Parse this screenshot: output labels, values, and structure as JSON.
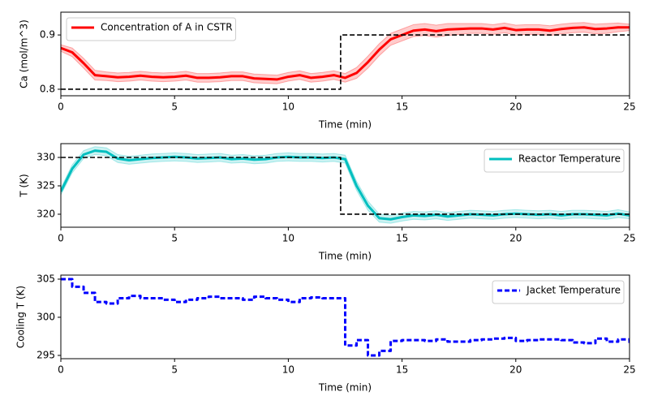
{
  "chart_data": [
    {
      "type": "line",
      "xlabel": "Time (min)",
      "ylabel": "Ca (mol/m^3)",
      "legend": "upper left",
      "xlim": [
        0,
        25
      ],
      "xticks": [
        0,
        5,
        10,
        15,
        20,
        25
      ],
      "ylim": [
        0.788,
        0.942
      ],
      "yticks": [
        0.8,
        0.9
      ],
      "x": [
        0,
        0.5,
        1,
        1.5,
        2,
        2.5,
        3,
        3.5,
        4,
        4.5,
        5,
        5.5,
        6,
        6.5,
        7,
        7.5,
        8,
        8.5,
        9,
        9.5,
        10,
        10.5,
        11,
        11.5,
        12,
        12.5,
        13,
        13.5,
        14,
        14.5,
        15,
        15.5,
        16,
        16.5,
        17,
        17.5,
        18,
        18.5,
        19,
        19.5,
        20,
        20.5,
        21,
        21.5,
        22,
        22.5,
        23,
        23.5,
        24,
        24.5,
        25
      ],
      "series": [
        {
          "name": "Concentration of A in CSTR",
          "color": "#ff0000",
          "linestyle": "solid",
          "linewidth": 3,
          "values": [
            0.876,
            0.868,
            0.848,
            0.826,
            0.824,
            0.822,
            0.823,
            0.825,
            0.823,
            0.822,
            0.823,
            0.825,
            0.821,
            0.821,
            0.822,
            0.824,
            0.824,
            0.82,
            0.819,
            0.818,
            0.823,
            0.826,
            0.821,
            0.823,
            0.826,
            0.821,
            0.83,
            0.85,
            0.873,
            0.892,
            0.9,
            0.908,
            0.91,
            0.907,
            0.91,
            0.911,
            0.912,
            0.912,
            0.91,
            0.913,
            0.909,
            0.91,
            0.91,
            0.908,
            0.911,
            0.913,
            0.914,
            0.911,
            0.912,
            0.914,
            0.914
          ],
          "band_upper": [
            0.882,
            0.876,
            0.857,
            0.835,
            0.832,
            0.83,
            0.831,
            0.833,
            0.831,
            0.83,
            0.831,
            0.833,
            0.829,
            0.829,
            0.83,
            0.832,
            0.832,
            0.828,
            0.827,
            0.826,
            0.831,
            0.834,
            0.829,
            0.831,
            0.834,
            0.829,
            0.84,
            0.861,
            0.884,
            0.903,
            0.911,
            0.919,
            0.921,
            0.918,
            0.921,
            0.921,
            0.921,
            0.921,
            0.919,
            0.922,
            0.918,
            0.919,
            0.919,
            0.917,
            0.92,
            0.922,
            0.923,
            0.92,
            0.921,
            0.922,
            0.92
          ],
          "band_lower": [
            0.87,
            0.86,
            0.839,
            0.817,
            0.816,
            0.814,
            0.815,
            0.817,
            0.815,
            0.814,
            0.815,
            0.817,
            0.813,
            0.813,
            0.814,
            0.816,
            0.816,
            0.812,
            0.811,
            0.81,
            0.815,
            0.818,
            0.813,
            0.815,
            0.818,
            0.813,
            0.82,
            0.839,
            0.862,
            0.881,
            0.889,
            0.897,
            0.899,
            0.896,
            0.899,
            0.901,
            0.903,
            0.903,
            0.901,
            0.904,
            0.9,
            0.901,
            0.901,
            0.899,
            0.902,
            0.904,
            0.905,
            0.902,
            0.903,
            0.906,
            0.908
          ]
        },
        {
          "color": "#000000",
          "linestyle": "dashed",
          "linewidth": 1.6,
          "x": [
            0,
            12.3,
            12.3,
            25
          ],
          "values": [
            0.8,
            0.8,
            0.9,
            0.9
          ]
        }
      ]
    },
    {
      "type": "line",
      "xlabel": "Time (min)",
      "ylabel": "T (K)",
      "legend": "upper right",
      "xlim": [
        0,
        25
      ],
      "xticks": [
        0,
        5,
        10,
        15,
        20,
        25
      ],
      "ylim": [
        317.71,
        332.43
      ],
      "yticks": [
        320,
        325,
        330
      ],
      "x": [
        0,
        0.5,
        1,
        1.5,
        2,
        2.5,
        3,
        3.5,
        4,
        4.5,
        5,
        5.5,
        6,
        6.5,
        7,
        7.5,
        8,
        8.5,
        9,
        9.5,
        10,
        10.5,
        11,
        11.5,
        12,
        12.5,
        13,
        13.5,
        14,
        14.5,
        15,
        15.5,
        16,
        16.5,
        17,
        17.5,
        18,
        18.5,
        19,
        19.5,
        20,
        20.5,
        21,
        21.5,
        22,
        22.5,
        23,
        23.5,
        24,
        24.5,
        25
      ],
      "series": [
        {
          "name": "Reactor Temperature",
          "color": "#00bfbf",
          "linestyle": "solid",
          "linewidth": 3,
          "values": [
            324.0,
            328.0,
            330.5,
            331.2,
            331.0,
            329.8,
            329.5,
            329.7,
            329.9,
            330.0,
            330.1,
            330.0,
            329.8,
            329.9,
            330.0,
            329.7,
            329.8,
            329.6,
            329.7,
            330.0,
            330.1,
            330.0,
            330.0,
            329.9,
            330.0,
            329.7,
            325.0,
            321.5,
            319.3,
            319.1,
            319.5,
            319.8,
            319.7,
            319.9,
            319.6,
            319.8,
            320.0,
            319.9,
            319.8,
            320.0,
            320.1,
            320.0,
            319.9,
            320.0,
            319.8,
            320.0,
            320.0,
            319.9,
            319.8,
            320.1,
            319.8
          ],
          "band_upper": [
            324.6,
            328.7,
            331.2,
            331.9,
            331.7,
            330.5,
            330.2,
            330.4,
            330.6,
            330.7,
            330.8,
            330.7,
            330.5,
            330.6,
            330.7,
            330.4,
            330.5,
            330.3,
            330.4,
            330.7,
            330.8,
            330.7,
            330.7,
            330.6,
            330.7,
            330.4,
            325.8,
            322.3,
            320.0,
            319.8,
            320.2,
            320.5,
            320.4,
            320.6,
            320.3,
            320.5,
            320.7,
            320.6,
            320.5,
            320.7,
            320.8,
            320.7,
            320.6,
            320.7,
            320.5,
            320.7,
            320.7,
            320.6,
            320.5,
            320.8,
            320.4
          ],
          "band_lower": [
            323.4,
            327.3,
            329.8,
            330.5,
            330.3,
            329.1,
            328.8,
            329.0,
            329.2,
            329.3,
            329.4,
            329.3,
            329.1,
            329.2,
            329.3,
            329.0,
            329.1,
            328.9,
            329.0,
            329.3,
            329.4,
            329.3,
            329.3,
            329.2,
            329.3,
            329.0,
            324.2,
            320.7,
            318.6,
            318.4,
            318.8,
            319.1,
            319.0,
            319.2,
            318.9,
            319.1,
            319.3,
            319.2,
            319.1,
            319.3,
            319.4,
            319.3,
            319.2,
            319.3,
            319.1,
            319.3,
            319.3,
            319.2,
            319.1,
            319.4,
            319.2
          ]
        },
        {
          "color": "#000000",
          "linestyle": "dashed",
          "linewidth": 1.6,
          "x": [
            0,
            12.3,
            12.3,
            25
          ],
          "values": [
            330,
            330,
            320,
            320
          ]
        }
      ]
    },
    {
      "type": "line",
      "xlabel": "Time (min)",
      "ylabel": "Cooling T (K)",
      "legend": "upper right",
      "xlim": [
        0,
        25
      ],
      "xticks": [
        0,
        5,
        10,
        15,
        20,
        25
      ],
      "ylim": [
        294.57,
        305.53
      ],
      "yticks": [
        295,
        300,
        305
      ],
      "x": [
        0,
        0.5,
        1,
        1.5,
        2,
        2.5,
        3,
        3.5,
        4,
        4.5,
        5,
        5.5,
        6,
        6.5,
        7,
        7.5,
        8,
        8.5,
        9,
        9.5,
        10,
        10.5,
        11,
        11.5,
        12,
        12.5,
        13,
        13.5,
        14,
        14.5,
        15,
        15.5,
        16,
        16.5,
        17,
        17.5,
        18,
        18.5,
        19,
        19.5,
        20,
        20.5,
        21,
        21.5,
        22,
        22.5,
        23,
        23.5,
        24,
        24.5,
        25
      ],
      "series": [
        {
          "name": "Jacket Temperature",
          "color": "#0000ff",
          "linestyle": "dashed",
          "linewidth": 3,
          "drawstyle": "steps-post",
          "values": [
            305,
            304,
            303.2,
            302,
            301.8,
            302.5,
            302.8,
            302.5,
            302.5,
            302.3,
            302.0,
            302.3,
            302.5,
            302.7,
            302.5,
            302.5,
            302.3,
            302.7,
            302.5,
            302.3,
            302.0,
            302.5,
            302.6,
            302.5,
            302.5,
            296.3,
            297.0,
            295.0,
            295.6,
            296.9,
            297.0,
            297.0,
            296.9,
            297.1,
            296.8,
            296.8,
            297.0,
            297.1,
            297.2,
            297.3,
            296.9,
            297.0,
            297.1,
            297.1,
            297.0,
            296.7,
            296.6,
            297.2,
            296.8,
            297.1,
            296.6
          ]
        }
      ]
    }
  ]
}
